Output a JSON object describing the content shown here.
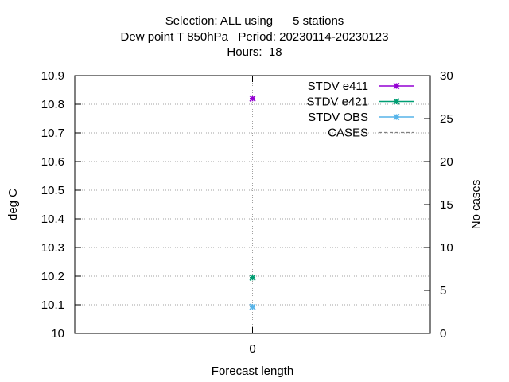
{
  "title_lines": [
    "Selection: ALL using      5 stations",
    "Dew point T 850hPa   Period: 20230114-20230123",
    "Hours:  18"
  ],
  "chart_data": {
    "type": "scatter",
    "xlabel": "Forecast length",
    "ylabel": "deg C",
    "y2label": "No cases",
    "x_categories": [
      "0"
    ],
    "xlim": [
      -1,
      1
    ],
    "ylim": [
      10,
      10.9
    ],
    "y2lim": [
      0,
      30
    ],
    "y_ticks": [
      "10",
      "10.1",
      "10.2",
      "10.3",
      "10.4",
      "10.5",
      "10.6",
      "10.7",
      "10.8",
      "10.9"
    ],
    "y2_ticks": [
      "0",
      "5",
      "10",
      "15",
      "20",
      "25",
      "30"
    ],
    "grid": true,
    "legend_position": "top-right",
    "series": [
      {
        "name": "STDV e411",
        "color": "#9400d3",
        "style": "line-points",
        "x": [
          0
        ],
        "values": [
          10.82
        ]
      },
      {
        "name": "STDV e421",
        "color": "#009e73",
        "style": "line-points",
        "x": [
          0
        ],
        "values": [
          10.195
        ]
      },
      {
        "name": "STDV OBS",
        "color": "#56b4e9",
        "style": "line-points",
        "x": [
          0
        ],
        "values": [
          10.093
        ]
      },
      {
        "name": "CASES",
        "color": "#808080",
        "style": "dashed",
        "axis": "y2",
        "x": [],
        "values": []
      }
    ]
  }
}
